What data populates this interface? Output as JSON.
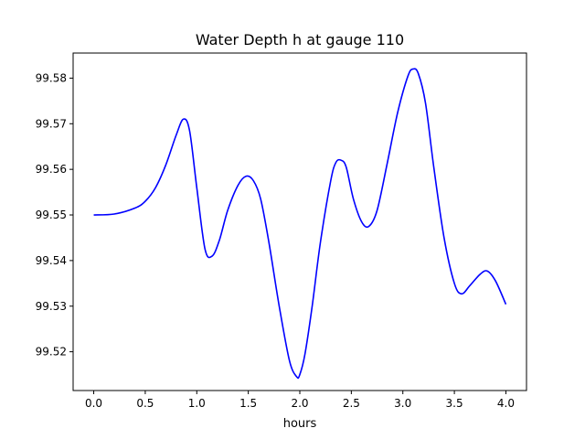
{
  "colors": {
    "line": "#0000ff",
    "axes": "#000000",
    "background": "#ffffff"
  },
  "chart_data": {
    "type": "line",
    "title": "Water Depth h at gauge 110",
    "xlabel": "hours",
    "ylabel": "",
    "xlim": [
      -0.2,
      4.2
    ],
    "ylim": [
      99.5115,
      99.5855
    ],
    "grid": false,
    "legend": "none",
    "xticks": [
      0.0,
      0.5,
      1.0,
      1.5,
      2.0,
      2.5,
      3.0,
      3.5,
      4.0
    ],
    "xtick_labels": [
      "0.0",
      "0.5",
      "1.0",
      "1.5",
      "2.0",
      "2.5",
      "3.0",
      "3.5",
      "4.0"
    ],
    "yticks": [
      99.52,
      99.53,
      99.54,
      99.55,
      99.56,
      99.57,
      99.58
    ],
    "ytick_labels": [
      "99.52",
      "99.53",
      "99.54",
      "99.55",
      "99.56",
      "99.57",
      "99.58"
    ],
    "series": [
      {
        "name": "",
        "x": [
          0.0,
          0.2,
          0.4,
          0.5,
          0.6,
          0.7,
          0.8,
          0.87,
          0.93,
          1.0,
          1.08,
          1.15,
          1.22,
          1.3,
          1.4,
          1.48,
          1.55,
          1.62,
          1.7,
          1.8,
          1.9,
          1.97,
          2.0,
          2.05,
          2.12,
          2.2,
          2.3,
          2.35,
          2.4,
          2.45,
          2.52,
          2.6,
          2.67,
          2.75,
          2.85,
          2.95,
          3.05,
          3.1,
          3.15,
          3.22,
          3.3,
          3.4,
          3.5,
          3.57,
          3.65,
          3.75,
          3.82,
          3.9,
          4.0
        ],
        "y": [
          99.55,
          99.5502,
          99.5515,
          99.553,
          99.556,
          99.561,
          99.5675,
          99.571,
          99.5685,
          99.556,
          99.5425,
          99.541,
          99.5445,
          99.551,
          99.5565,
          99.5585,
          99.5575,
          99.5535,
          99.544,
          99.53,
          99.518,
          99.5145,
          99.515,
          99.5195,
          99.53,
          99.544,
          99.5575,
          99.5615,
          99.562,
          99.5605,
          99.5535,
          99.5485,
          99.5475,
          99.551,
          99.5615,
          99.5725,
          99.5805,
          99.582,
          99.581,
          99.5745,
          99.5605,
          99.545,
          99.535,
          99.5327,
          99.5345,
          99.537,
          99.5377,
          99.5355,
          99.5304
        ]
      }
    ]
  }
}
